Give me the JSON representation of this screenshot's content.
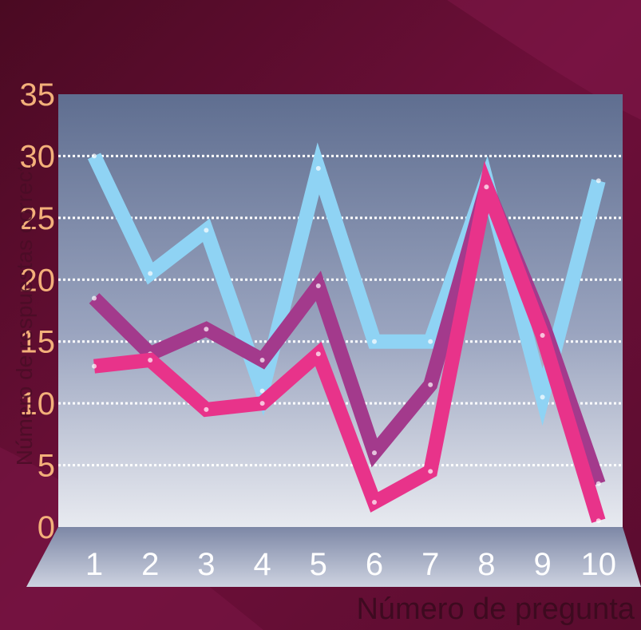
{
  "chart_data": {
    "type": "line",
    "title": "",
    "xlabel": "Número de pregunta",
    "ylabel": "Número de respuestas correct",
    "ylim": [
      0,
      35
    ],
    "yticks": [
      0,
      5,
      10,
      15,
      20,
      25,
      30,
      35
    ],
    "categories": [
      "1",
      "2",
      "3",
      "4",
      "5",
      "6",
      "7",
      "8",
      "9",
      "10"
    ],
    "grid": true,
    "series": [
      {
        "color": "#8fd3f4",
        "values": [
          30,
          20.5,
          24,
          11,
          29,
          15,
          15,
          28,
          10.5,
          28
        ]
      },
      {
        "color": "#a33a8c",
        "values": [
          18.5,
          14,
          16,
          13.5,
          19.5,
          6,
          11.5,
          27.5,
          16.5,
          3.5
        ]
      },
      {
        "color": "#e8338a",
        "values": [
          13,
          13.5,
          9.5,
          10,
          14,
          2,
          4.5,
          27.5,
          15.5,
          0.5
        ]
      }
    ]
  }
}
